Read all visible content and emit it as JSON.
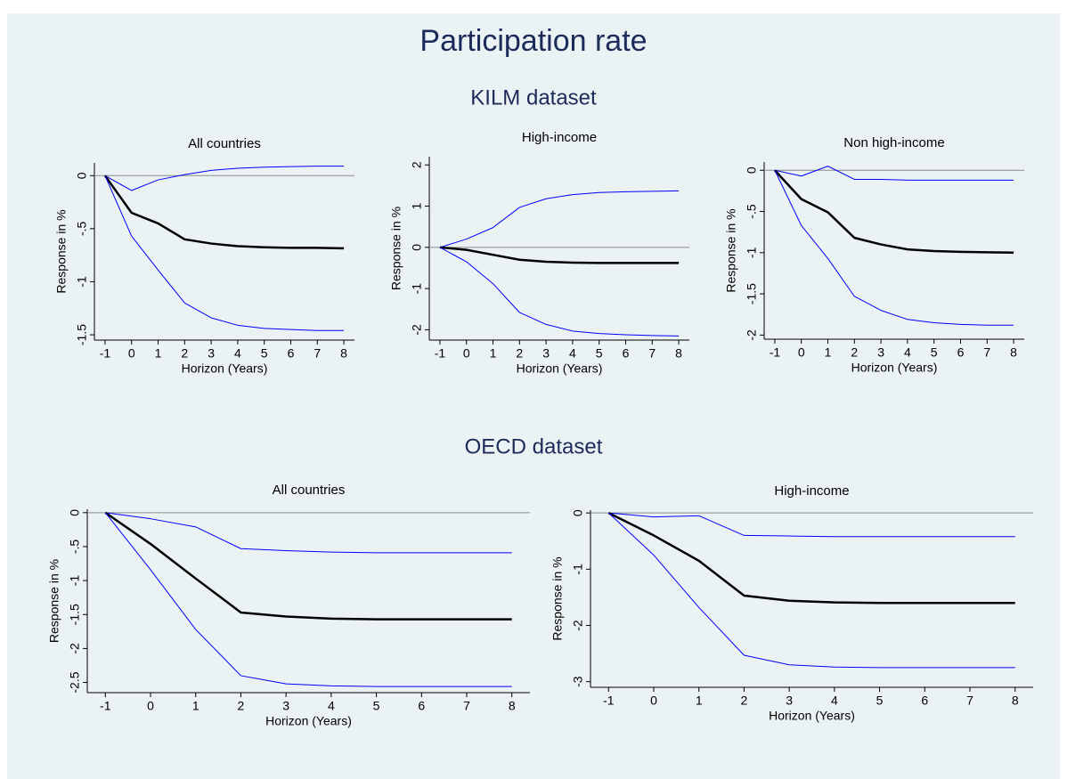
{
  "title": "Participation rate",
  "groups": [
    "KILM dataset",
    "OECD dataset"
  ],
  "chart_data": [
    {
      "type": "line",
      "title": "All countries",
      "xlabel": "Horizon (Years)",
      "ylabel": "Response in %",
      "x": [
        -1,
        0,
        1,
        2,
        3,
        4,
        5,
        6,
        7,
        8
      ],
      "xlim": [
        -1.4,
        8.4
      ],
      "xticks": [
        -1,
        0,
        1,
        2,
        3,
        4,
        5,
        6,
        7,
        8
      ],
      "ylim": [
        -1.55,
        0.12
      ],
      "yticks": [
        0,
        {
          "value": -0.5,
          "label": "-.5"
        },
        -1,
        {
          "value": -1.5,
          "label": "-1.5"
        }
      ],
      "refline": 0,
      "series": [
        {
          "color": "#0000ff",
          "width": 1,
          "values": [
            0,
            -0.14,
            -0.04,
            0.01,
            0.05,
            0.07,
            0.08,
            0.085,
            0.09,
            0.09
          ]
        },
        {
          "color": "#000000",
          "width": 2.5,
          "values": [
            0,
            -0.35,
            -0.45,
            -0.6,
            -0.64,
            -0.665,
            -0.675,
            -0.68,
            -0.68,
            -0.685
          ]
        },
        {
          "color": "#0000ff",
          "width": 1,
          "values": [
            0,
            -0.57,
            -0.89,
            -1.2,
            -1.34,
            -1.41,
            -1.44,
            -1.45,
            -1.46,
            -1.46
          ]
        }
      ]
    },
    {
      "type": "line",
      "title": "High-income",
      "xlabel": "Horizon (Years)",
      "ylabel": "Response in %",
      "x": [
        -1,
        0,
        1,
        2,
        3,
        4,
        5,
        6,
        7,
        8
      ],
      "xlim": [
        -1.4,
        8.4
      ],
      "xticks": [
        -1,
        0,
        1,
        2,
        3,
        4,
        5,
        6,
        7,
        8
      ],
      "ylim": [
        -2.25,
        2.2
      ],
      "yticks": [
        2,
        1,
        0,
        -1,
        -2
      ],
      "refline": 0,
      "series": [
        {
          "color": "#0000ff",
          "width": 1,
          "values": [
            0,
            0.2,
            0.48,
            0.97,
            1.18,
            1.28,
            1.33,
            1.35,
            1.36,
            1.37
          ]
        },
        {
          "color": "#000000",
          "width": 2.5,
          "values": [
            0,
            -0.06,
            -0.18,
            -0.3,
            -0.35,
            -0.37,
            -0.38,
            -0.38,
            -0.38,
            -0.38
          ]
        },
        {
          "color": "#0000ff",
          "width": 1,
          "values": [
            0,
            -0.35,
            -0.88,
            -1.58,
            -1.87,
            -2.03,
            -2.09,
            -2.12,
            -2.14,
            -2.15
          ]
        }
      ]
    },
    {
      "type": "line",
      "title": "Non high-income",
      "xlabel": "Horizon (Years)",
      "ylabel": "Response in %",
      "x": [
        -1,
        0,
        1,
        2,
        3,
        4,
        5,
        6,
        7,
        8
      ],
      "xlim": [
        -1.4,
        8.4
      ],
      "xticks": [
        -1,
        0,
        1,
        2,
        3,
        4,
        5,
        6,
        7,
        8
      ],
      "ylim": [
        -2.05,
        0.1
      ],
      "yticks": [
        0,
        {
          "value": -0.5,
          "label": "-.5"
        },
        -1,
        {
          "value": -1.5,
          "label": "-1.5"
        },
        -2
      ],
      "refline": 0,
      "series": [
        {
          "color": "#0000ff",
          "width": 1,
          "values": [
            0,
            -0.07,
            0.05,
            -0.11,
            -0.11,
            -0.12,
            -0.12,
            -0.12,
            -0.12,
            -0.12
          ]
        },
        {
          "color": "#000000",
          "width": 2.5,
          "values": [
            0,
            -0.35,
            -0.51,
            -0.82,
            -0.9,
            -0.96,
            -0.98,
            -0.99,
            -0.995,
            -1.0
          ]
        },
        {
          "color": "#0000ff",
          "width": 1,
          "values": [
            0,
            -0.67,
            -1.07,
            -1.53,
            -1.7,
            -1.81,
            -1.85,
            -1.87,
            -1.88,
            -1.88
          ]
        }
      ]
    },
    {
      "type": "line",
      "title": "All countries",
      "xlabel": "Horizon (Years)",
      "ylabel": "Response in %",
      "x": [
        -1,
        0,
        1,
        2,
        3,
        4,
        5,
        6,
        7,
        8
      ],
      "xlim": [
        -1.4,
        8.4
      ],
      "xticks": [
        -1,
        0,
        1,
        2,
        3,
        4,
        5,
        6,
        7,
        8
      ],
      "ylim": [
        -2.65,
        0.05
      ],
      "yticks": [
        0,
        {
          "value": -0.5,
          "label": "-.5"
        },
        -1,
        {
          "value": -1.5,
          "label": "-1.5"
        },
        -2,
        {
          "value": -2.5,
          "label": "-2.5"
        }
      ],
      "refline": 0,
      "series": [
        {
          "color": "#0000ff",
          "width": 1,
          "values": [
            0,
            -0.09,
            -0.21,
            -0.53,
            -0.56,
            -0.58,
            -0.59,
            -0.59,
            -0.59,
            -0.59
          ]
        },
        {
          "color": "#000000",
          "width": 2.5,
          "values": [
            0,
            -0.46,
            -0.97,
            -1.47,
            -1.53,
            -1.56,
            -1.57,
            -1.57,
            -1.57,
            -1.57
          ]
        },
        {
          "color": "#0000ff",
          "width": 1,
          "values": [
            0,
            -0.84,
            -1.72,
            -2.4,
            -2.52,
            -2.55,
            -2.56,
            -2.56,
            -2.56,
            -2.56
          ]
        }
      ]
    },
    {
      "type": "line",
      "title": "High-income",
      "xlabel": "Horizon (Years)",
      "ylabel": "Response in %",
      "x": [
        -1,
        0,
        1,
        2,
        3,
        4,
        5,
        6,
        7,
        8
      ],
      "xlim": [
        -1.4,
        8.4
      ],
      "xticks": [
        -1,
        0,
        1,
        2,
        3,
        4,
        5,
        6,
        7,
        8
      ],
      "ylim": [
        -3.1,
        0.05
      ],
      "yticks": [
        0,
        -1,
        -2,
        -3
      ],
      "refline": 0,
      "series": [
        {
          "color": "#0000ff",
          "width": 1,
          "values": [
            0,
            -0.07,
            -0.05,
            -0.4,
            -0.41,
            -0.42,
            -0.42,
            -0.42,
            -0.42,
            -0.42
          ]
        },
        {
          "color": "#000000",
          "width": 2.5,
          "values": [
            0,
            -0.4,
            -0.85,
            -1.47,
            -1.56,
            -1.59,
            -1.6,
            -1.6,
            -1.6,
            -1.6
          ]
        },
        {
          "color": "#0000ff",
          "width": 1,
          "values": [
            0,
            -0.75,
            -1.68,
            -2.53,
            -2.7,
            -2.74,
            -2.75,
            -2.75,
            -2.75,
            -2.75
          ]
        }
      ]
    }
  ]
}
